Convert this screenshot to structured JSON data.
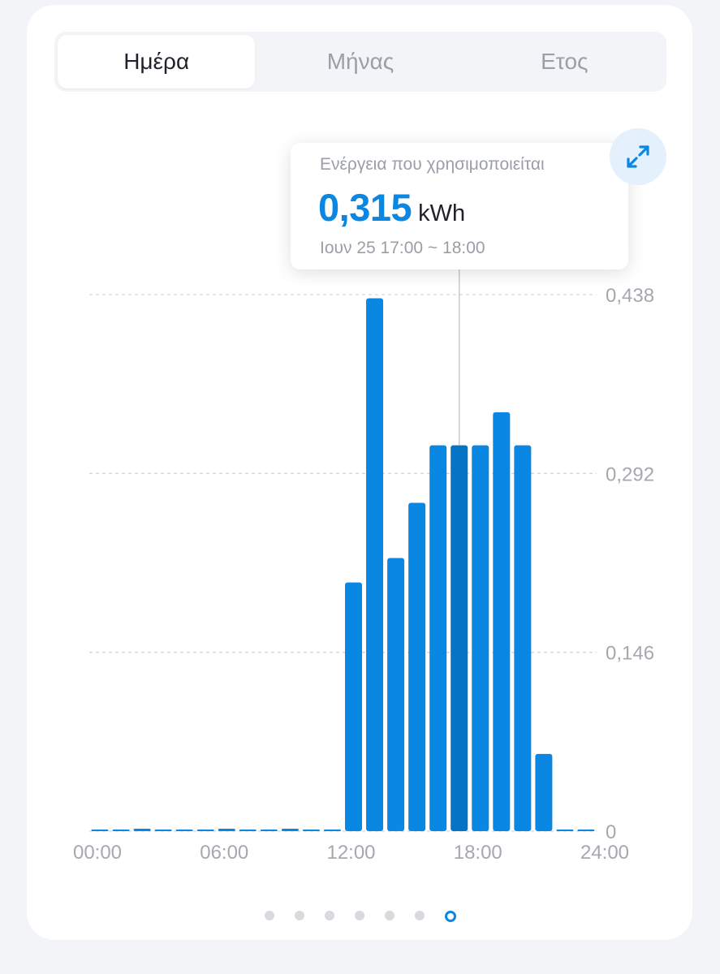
{
  "tabs": [
    {
      "label": "Ημέρα",
      "active": true
    },
    {
      "label": "Μήνας",
      "active": false
    },
    {
      "label": "Ετος",
      "active": false
    }
  ],
  "tooltip": {
    "label": "Ενέργεια που χρησιμοποιείται",
    "value": "0,315",
    "unit": "kWh",
    "time": "Ιουν 25 17:00 ~ 18:00"
  },
  "colors": {
    "accent": "#0a87e3",
    "bar": "#0a87e3",
    "bar_selected": "#0574c4"
  },
  "icons": {
    "expand": "expand-arrows-icon"
  },
  "pager": {
    "count": 7,
    "active_index": 6
  },
  "chart_data": {
    "type": "bar",
    "x": [
      0,
      1,
      2,
      3,
      4,
      5,
      6,
      7,
      8,
      9,
      10,
      11,
      12,
      13,
      14,
      15,
      16,
      17,
      18,
      19,
      20,
      21,
      22,
      23
    ],
    "values": [
      0.001,
      0.001,
      0.002,
      0.001,
      0.001,
      0.001,
      0.002,
      0.001,
      0.001,
      0.002,
      0.001,
      0.001,
      0.203,
      0.435,
      0.223,
      0.268,
      0.315,
      0.315,
      0.315,
      0.342,
      0.315,
      0.063,
      0,
      0
    ],
    "selected_index": 17,
    "xticks": [
      "00:00",
      "06:00",
      "12:00",
      "18:00",
      "24:00"
    ],
    "yticks": [
      "0",
      "0,146",
      "0,292",
      "0,438"
    ],
    "ylim": [
      0,
      0.438
    ],
    "xlim": [
      0,
      24
    ],
    "grid": true,
    "unit": "kWh"
  }
}
